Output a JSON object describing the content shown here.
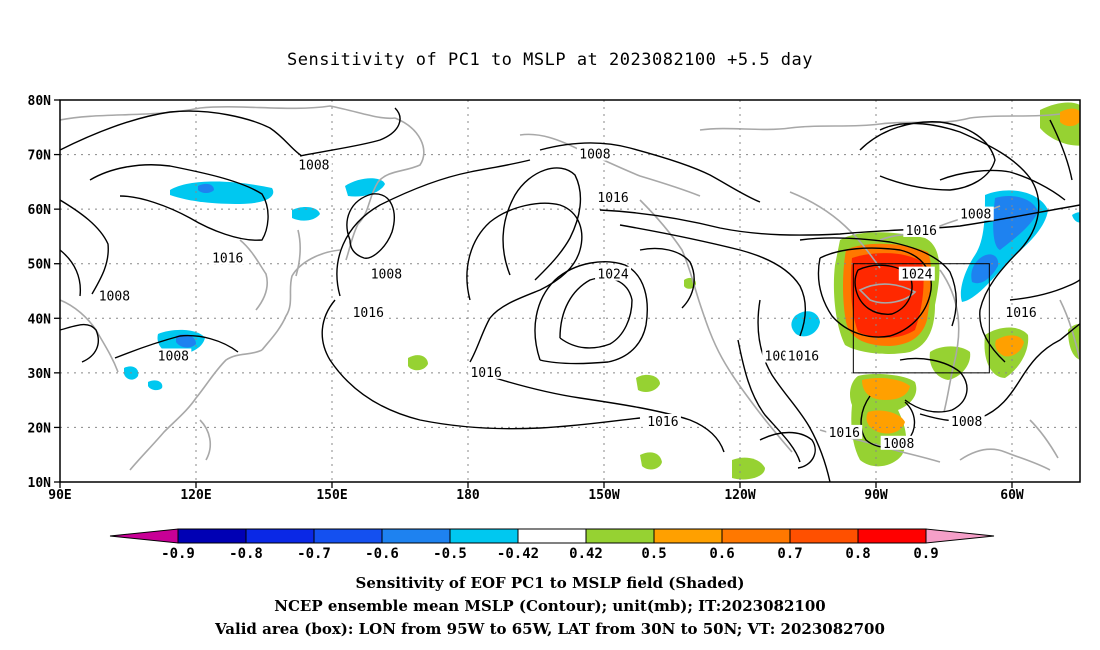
{
  "title": "Sensitivity of PC1 to MSLP at 2023082100 +5.5 day",
  "map": {
    "lat_labels": [
      "80N",
      "70N",
      "60N",
      "50N",
      "40N",
      "30N",
      "20N",
      "10N"
    ],
    "lat_values": [
      80,
      70,
      60,
      50,
      40,
      30,
      20,
      10
    ],
    "lon_labels": [
      "90E",
      "120E",
      "150E",
      "180",
      "150W",
      "120W",
      "90W",
      "60W"
    ],
    "lon_values": [
      90,
      120,
      150,
      180,
      210,
      240,
      270,
      300
    ],
    "lon_range": [
      90,
      315
    ],
    "lat_range": [
      10,
      80
    ],
    "valid_box": {
      "lon": [
        265,
        295
      ],
      "lat": [
        30,
        50
      ]
    },
    "contour_labels": [
      {
        "text": "1008",
        "lon": 146,
        "lat": 68
      },
      {
        "text": "1008",
        "lon": 208,
        "lat": 70
      },
      {
        "text": "1016",
        "lon": 127,
        "lat": 51
      },
      {
        "text": "1016",
        "lon": 212,
        "lat": 62
      },
      {
        "text": "1016",
        "lon": 280,
        "lat": 56
      },
      {
        "text": "1008",
        "lon": 292,
        "lat": 59
      },
      {
        "text": "1008",
        "lon": 162,
        "lat": 48
      },
      {
        "text": "1008",
        "lon": 102,
        "lat": 44
      },
      {
        "text": "1016",
        "lon": 158,
        "lat": 41
      },
      {
        "text": "1024",
        "lon": 212,
        "lat": 48
      },
      {
        "text": "1024",
        "lon": 279,
        "lat": 48
      },
      {
        "text": "1008",
        "lon": 115,
        "lat": 33
      },
      {
        "text": "1016",
        "lon": 184,
        "lat": 30
      },
      {
        "text": "1016",
        "lon": 223,
        "lat": 21
      },
      {
        "text": "100",
        "lon": 248,
        "lat": 33
      },
      {
        "text": "1016",
        "lon": 254,
        "lat": 33
      },
      {
        "text": "1016",
        "lon": 263,
        "lat": 19
      },
      {
        "text": "1008",
        "lon": 275,
        "lat": 17
      },
      {
        "text": "1008",
        "lon": 290,
        "lat": 21
      },
      {
        "text": "1016",
        "lon": 302,
        "lat": 41
      },
      {
        "text": "1008",
        "lon": 102,
        "lat": 44
      }
    ]
  },
  "colorbar": {
    "labels": [
      "-0.9",
      "-0.8",
      "-0.7",
      "-0.6",
      "-0.5",
      "-0.42",
      "0.42",
      "0.5",
      "0.6",
      "0.7",
      "0.8",
      "0.9"
    ],
    "colors": [
      "#0000b4",
      "#0a28e6",
      "#1450f0",
      "#1e82f0",
      "#00c8f0",
      "#ffffff",
      "#96d232",
      "#ffa000",
      "#ff7800",
      "#ff5000",
      "#ff0000"
    ],
    "end_low": "#c80096",
    "end_high": "#f59fc8"
  },
  "caption": {
    "line1": "Sensitivity of EOF PC1 to MSLP field (Shaded)",
    "line2": "NCEP ensemble mean MSLP (Contour); unit(mb); IT:2023082100",
    "line3": "Valid area (box): LON from 95W to 65W, LAT from 30N to 50N; VT: 2023082700"
  }
}
